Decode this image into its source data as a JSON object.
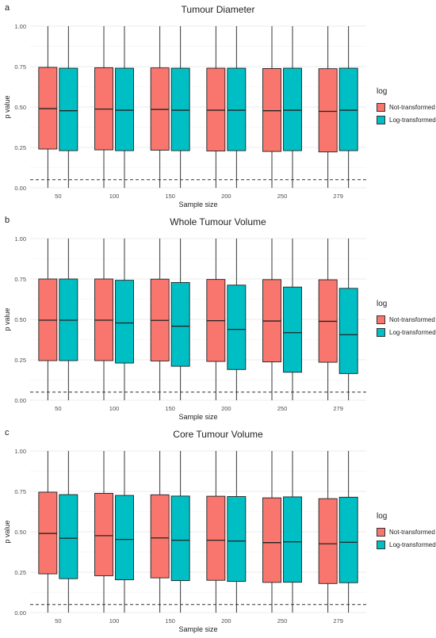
{
  "colors": {
    "not_transformed": "#F8766D",
    "log_transformed": "#00BFC4"
  },
  "legend": {
    "title": "log",
    "items": [
      "Not-transformed",
      "Log-transformed"
    ]
  },
  "chart_data": [
    {
      "panel": "a",
      "type": "box",
      "title": "Tumour Diameter",
      "xlabel": "Sample size",
      "ylabel": "p value",
      "ylim": [
        0,
        1
      ],
      "yticks": [
        "0.00",
        "0.25",
        "0.50",
        "0.75",
        "1.00"
      ],
      "reference_line": 0.05,
      "categories": [
        "50",
        "100",
        "150",
        "200",
        "250",
        "279"
      ],
      "series": [
        {
          "name": "Not-transformed",
          "boxes": [
            {
              "min": 0,
              "q1": 0.24,
              "median": 0.49,
              "q3": 0.745,
              "max": 1
            },
            {
              "min": 0,
              "q1": 0.235,
              "median": 0.487,
              "q3": 0.743,
              "max": 1
            },
            {
              "min": 0,
              "q1": 0.233,
              "median": 0.485,
              "q3": 0.742,
              "max": 1
            },
            {
              "min": 0,
              "q1": 0.228,
              "median": 0.48,
              "q3": 0.74,
              "max": 1
            },
            {
              "min": 0,
              "q1": 0.225,
              "median": 0.477,
              "q3": 0.738,
              "max": 1
            },
            {
              "min": 0,
              "q1": 0.222,
              "median": 0.473,
              "q3": 0.737,
              "max": 1
            }
          ]
        },
        {
          "name": "Log-transformed",
          "boxes": [
            {
              "min": 0,
              "q1": 0.23,
              "median": 0.477,
              "q3": 0.74,
              "max": 1
            },
            {
              "min": 0,
              "q1": 0.23,
              "median": 0.48,
              "q3": 0.74,
              "max": 1
            },
            {
              "min": 0,
              "q1": 0.23,
              "median": 0.48,
              "q3": 0.74,
              "max": 1
            },
            {
              "min": 0,
              "q1": 0.23,
              "median": 0.48,
              "q3": 0.74,
              "max": 1
            },
            {
              "min": 0,
              "q1": 0.23,
              "median": 0.48,
              "q3": 0.74,
              "max": 1
            },
            {
              "min": 0,
              "q1": 0.23,
              "median": 0.48,
              "q3": 0.74,
              "max": 1
            }
          ]
        }
      ]
    },
    {
      "panel": "b",
      "type": "box",
      "title": "Whole Tumour Volume",
      "xlabel": "Sample size",
      "ylabel": "p value",
      "ylim": [
        0,
        1
      ],
      "yticks": [
        "0.00",
        "0.25",
        "0.50",
        "0.75",
        "1.00"
      ],
      "reference_line": 0.05,
      "categories": [
        "50",
        "100",
        "150",
        "200",
        "250",
        "279"
      ],
      "series": [
        {
          "name": "Not-transformed",
          "boxes": [
            {
              "min": 0,
              "q1": 0.245,
              "median": 0.495,
              "q3": 0.75,
              "max": 1
            },
            {
              "min": 0,
              "q1": 0.245,
              "median": 0.495,
              "q3": 0.75,
              "max": 1
            },
            {
              "min": 0,
              "q1": 0.243,
              "median": 0.494,
              "q3": 0.749,
              "max": 1
            },
            {
              "min": 0,
              "q1": 0.24,
              "median": 0.492,
              "q3": 0.747,
              "max": 1
            },
            {
              "min": 0,
              "q1": 0.237,
              "median": 0.49,
              "q3": 0.746,
              "max": 1
            },
            {
              "min": 0,
              "q1": 0.235,
              "median": 0.488,
              "q3": 0.745,
              "max": 1
            }
          ]
        },
        {
          "name": "Log-transformed",
          "boxes": [
            {
              "min": 0,
              "q1": 0.245,
              "median": 0.495,
              "q3": 0.75,
              "max": 1
            },
            {
              "min": 0,
              "q1": 0.23,
              "median": 0.478,
              "q3": 0.742,
              "max": 1
            },
            {
              "min": 0,
              "q1": 0.21,
              "median": 0.458,
              "q3": 0.728,
              "max": 1
            },
            {
              "min": 0,
              "q1": 0.19,
              "median": 0.438,
              "q3": 0.712,
              "max": 1
            },
            {
              "min": 0,
              "q1": 0.173,
              "median": 0.418,
              "q3": 0.7,
              "max": 1
            },
            {
              "min": 0,
              "q1": 0.165,
              "median": 0.405,
              "q3": 0.692,
              "max": 1
            }
          ]
        }
      ]
    },
    {
      "panel": "c",
      "type": "box",
      "title": "Core Tumour Volume",
      "xlabel": "Sample size",
      "ylabel": "p value",
      "ylim": [
        0,
        1
      ],
      "yticks": [
        "0.00",
        "0.25",
        "0.50",
        "0.75",
        "1.00"
      ],
      "reference_line": 0.05,
      "categories": [
        "50",
        "100",
        "150",
        "200",
        "250",
        "279"
      ],
      "series": [
        {
          "name": "Not-transformed",
          "boxes": [
            {
              "min": 0,
              "q1": 0.24,
              "median": 0.49,
              "q3": 0.745,
              "max": 1
            },
            {
              "min": 0,
              "q1": 0.228,
              "median": 0.476,
              "q3": 0.738,
              "max": 1
            },
            {
              "min": 0,
              "q1": 0.215,
              "median": 0.462,
              "q3": 0.729,
              "max": 1
            },
            {
              "min": 0,
              "q1": 0.2,
              "median": 0.448,
              "q3": 0.72,
              "max": 1
            },
            {
              "min": 0,
              "q1": 0.187,
              "median": 0.433,
              "q3": 0.71,
              "max": 1
            },
            {
              "min": 0,
              "q1": 0.18,
              "median": 0.426,
              "q3": 0.705,
              "max": 1
            }
          ]
        },
        {
          "name": "Log-transformed",
          "boxes": [
            {
              "min": 0,
              "q1": 0.21,
              "median": 0.46,
              "q3": 0.73,
              "max": 1
            },
            {
              "min": 0,
              "q1": 0.203,
              "median": 0.453,
              "q3": 0.725,
              "max": 1
            },
            {
              "min": 0,
              "q1": 0.198,
              "median": 0.448,
              "q3": 0.721,
              "max": 1
            },
            {
              "min": 0,
              "q1": 0.193,
              "median": 0.443,
              "q3": 0.718,
              "max": 1
            },
            {
              "min": 0,
              "q1": 0.188,
              "median": 0.438,
              "q3": 0.716,
              "max": 1
            },
            {
              "min": 0,
              "q1": 0.185,
              "median": 0.435,
              "q3": 0.714,
              "max": 1
            }
          ]
        }
      ]
    }
  ]
}
